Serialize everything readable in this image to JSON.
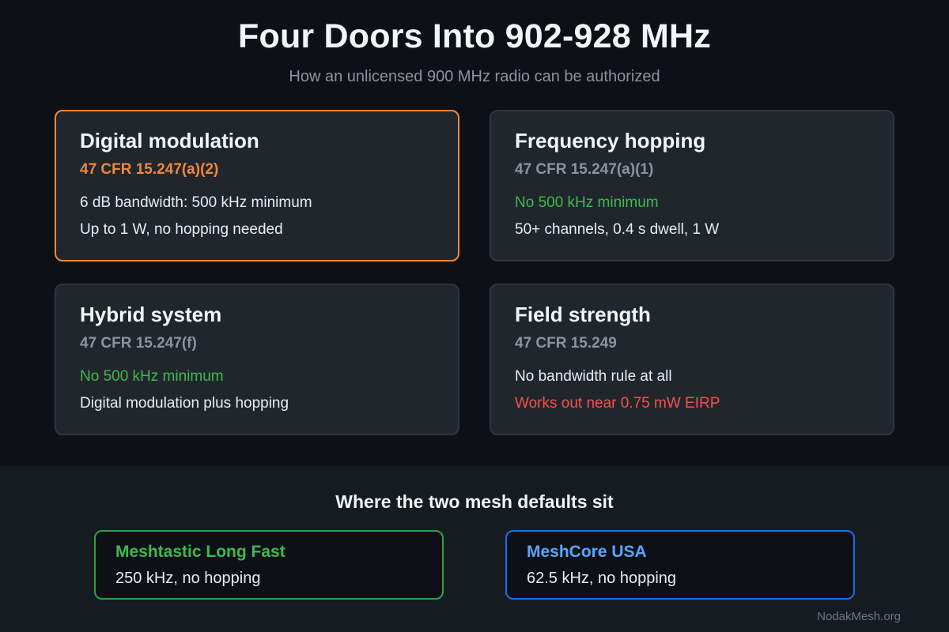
{
  "header": {
    "title": "Four Doors Into 902-928 MHz",
    "subtitle": "How an unlicensed 900 MHz radio can be authorized"
  },
  "cards": [
    {
      "title": "Digital modulation",
      "rule": "47 CFR 15.247(a)(2)",
      "line1": "6 dB bandwidth: 500 kHz minimum",
      "line2": "Up to 1 W, no hopping needed"
    },
    {
      "title": "Frequency hopping",
      "rule": "47 CFR 15.247(a)(1)",
      "line1": "No 500 kHz minimum",
      "line2": "50+ channels, 0.4 s dwell, 1 W"
    },
    {
      "title": "Hybrid system",
      "rule": "47 CFR 15.247(f)",
      "line1": "No 500 kHz minimum",
      "line2": "Digital modulation plus hopping"
    },
    {
      "title": "Field strength",
      "rule": "47 CFR 15.249",
      "line1": "No bandwidth rule at all",
      "line2": "Works out near 0.75 mW EIRP"
    }
  ],
  "mesh_section": {
    "title": "Where the two mesh defaults sit",
    "items": [
      {
        "name": "Meshtastic Long Fast",
        "detail": "250 kHz, no hopping"
      },
      {
        "name": "MeshCore USA",
        "detail": "62.5 kHz, no hopping"
      }
    ]
  },
  "credit": "NodakMesh.org",
  "colors": {
    "background": "#0d1117",
    "card": "#21262d",
    "highlight": "#f0883e",
    "positive": "#3fb950",
    "negative": "#f85149",
    "accent_blue": "#58a6ff"
  }
}
